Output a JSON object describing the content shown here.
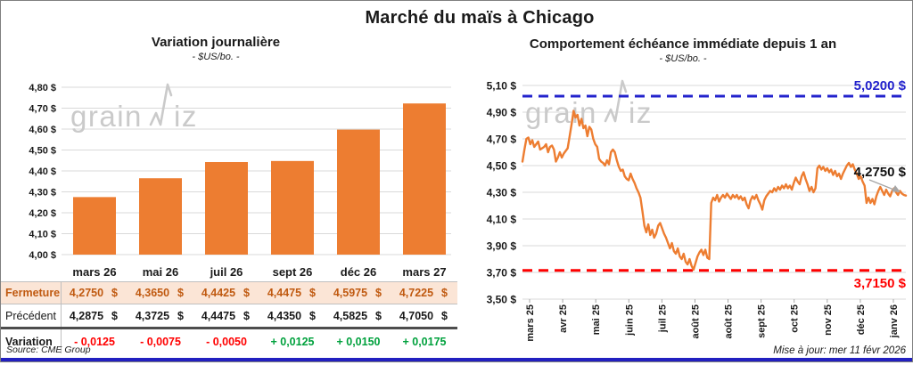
{
  "page": {
    "title": "Marché du maïs à Chicago"
  },
  "watermark": {
    "part1": "grain",
    "part2": "iz"
  },
  "chart_data": [
    {
      "type": "bar",
      "title": "Variation journalière",
      "subtitle": "- $US/bo. -",
      "categories": [
        "mars 26",
        "mai 26",
        "juil 26",
        "sept 26",
        "déc 26",
        "mars 27"
      ],
      "values": [
        4.275,
        4.365,
        4.4425,
        4.4475,
        4.5975,
        4.7225
      ],
      "ylim": [
        4.0,
        4.8
      ],
      "ytick_step": 0.1,
      "bar_color": "#ED7D31",
      "grid": true,
      "legend": "none"
    },
    {
      "type": "line",
      "title": "Comportement échéance immédiate depuis 1 an",
      "subtitle": "- $US/bo. -",
      "x_tick_labels": [
        "mars 25",
        "avr 25",
        "mai 25",
        "juin 25",
        "juil 25",
        "août 25",
        "août 25",
        "sept 25",
        "oct 25",
        "nov 25",
        "déc 25",
        "janv 26"
      ],
      "ylim": [
        3.5,
        5.1
      ],
      "ytick_step": 0.2,
      "line_color": "#ED7D31",
      "grid": true,
      "legend": "none",
      "upper_ref": {
        "value": 5.02,
        "label": "5,0200 $",
        "color": "#2222CC"
      },
      "lower_ref": {
        "value": 3.715,
        "label": "3,7150 $",
        "color": "#FF0000"
      },
      "last_value_label": "4,2750 $",
      "values": [
        4.53,
        4.62,
        4.7,
        4.71,
        4.66,
        4.69,
        4.64,
        4.66,
        4.68,
        4.62,
        4.63,
        4.64,
        4.66,
        4.6,
        4.64,
        4.65,
        4.62,
        4.53,
        4.56,
        4.6,
        4.56,
        4.59,
        4.61,
        4.63,
        4.72,
        4.81,
        4.91,
        4.86,
        4.88,
        4.8,
        4.85,
        4.78,
        4.8,
        4.72,
        4.79,
        4.77,
        4.7,
        4.66,
        4.64,
        4.55,
        4.53,
        4.52,
        4.5,
        4.54,
        4.51,
        4.6,
        4.62,
        4.6,
        4.54,
        4.49,
        4.46,
        4.47,
        4.42,
        4.4,
        4.39,
        4.44,
        4.4,
        4.37,
        4.33,
        4.3,
        4.26,
        4.16,
        4.05,
        4.0,
        4.06,
        3.98,
        4.02,
        3.96,
        3.99,
        4.05,
        4.07,
        4.03,
        3.99,
        3.96,
        3.92,
        3.88,
        3.92,
        3.86,
        3.84,
        3.88,
        3.82,
        3.8,
        3.84,
        3.78,
        3.76,
        3.8,
        3.75,
        3.72,
        3.77,
        3.82,
        3.85,
        3.87,
        3.83,
        3.87,
        3.81,
        3.8,
        4.22,
        4.26,
        4.24,
        4.28,
        4.23,
        4.26,
        4.28,
        4.26,
        4.29,
        4.27,
        4.25,
        4.28,
        4.26,
        4.28,
        4.25,
        4.27,
        4.24,
        4.26,
        4.21,
        4.18,
        4.24,
        4.27,
        4.25,
        4.28,
        4.24,
        4.21,
        4.17,
        4.24,
        4.27,
        4.29,
        4.31,
        4.3,
        4.33,
        4.31,
        4.34,
        4.32,
        4.35,
        4.33,
        4.36,
        4.33,
        4.35,
        4.32,
        4.37,
        4.41,
        4.38,
        4.36,
        4.42,
        4.45,
        4.4,
        4.36,
        4.31,
        4.34,
        4.3,
        4.33,
        4.48,
        4.5,
        4.47,
        4.49,
        4.46,
        4.48,
        4.45,
        4.47,
        4.43,
        4.46,
        4.42,
        4.44,
        4.4,
        4.44,
        4.47,
        4.5,
        4.52,
        4.49,
        4.51,
        4.47,
        4.44,
        4.4,
        4.42,
        4.38,
        4.35,
        4.22,
        4.26,
        4.22,
        4.25,
        4.21,
        4.27,
        4.31,
        4.34,
        4.31,
        4.28,
        4.32,
        4.29,
        4.27,
        4.31,
        4.33,
        4.3,
        4.28,
        4.31,
        4.29,
        4.28,
        4.275
      ]
    }
  ],
  "table": {
    "currency": "$",
    "columns": [
      "mars 26",
      "mai 26",
      "juil 26",
      "sept 26",
      "déc 26",
      "mars 27"
    ],
    "rows": [
      {
        "label": "Fermeture",
        "values": [
          "4,2750",
          "4,3650",
          "4,4425",
          "4,4475",
          "4,5975",
          "4,7225"
        ]
      },
      {
        "label": "Précédent",
        "values": [
          "4,2875",
          "4,3725",
          "4,4475",
          "4,4350",
          "4,5825",
          "4,7050"
        ]
      },
      {
        "label": "Variation",
        "values": [
          "- 0,0125",
          "- 0,0075",
          "- 0,0050",
          "+ 0,0125",
          "+ 0,0150",
          "+ 0,0175"
        ]
      }
    ]
  },
  "footer": {
    "source": "Source: CME Group",
    "updated": "Mise à jour: mer 11 févr 2026"
  }
}
